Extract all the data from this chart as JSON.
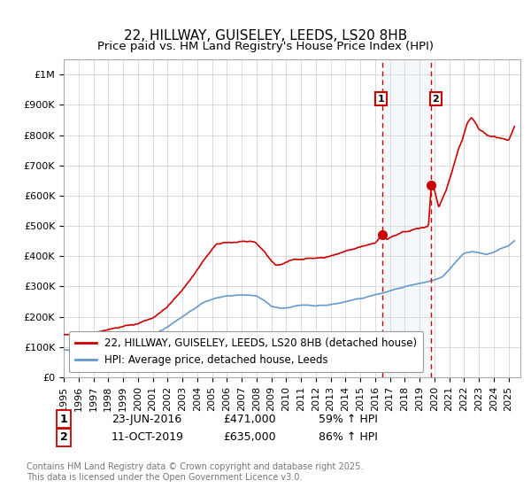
{
  "title_line1": "22, HILLWAY, GUISELEY, LEEDS, LS20 8HB",
  "title_line2": "Price paid vs. HM Land Registry's House Price Index (HPI)",
  "ylabel_ticks": [
    "£0",
    "£100K",
    "£200K",
    "£300K",
    "£400K",
    "£500K",
    "£600K",
    "£700K",
    "£800K",
    "£900K",
    "£1M"
  ],
  "ytick_values": [
    0,
    100000,
    200000,
    300000,
    400000,
    500000,
    600000,
    700000,
    800000,
    900000,
    1000000
  ],
  "ylim": [
    0,
    1050000
  ],
  "xlim_start": 1995.0,
  "xlim_end": 2025.8,
  "x_tick_years": [
    1995,
    1996,
    1997,
    1998,
    1999,
    2000,
    2001,
    2002,
    2003,
    2004,
    2005,
    2006,
    2007,
    2008,
    2009,
    2010,
    2011,
    2012,
    2013,
    2014,
    2015,
    2016,
    2017,
    2018,
    2019,
    2020,
    2021,
    2022,
    2023,
    2024,
    2025
  ],
  "red_line_color": "#cc0000",
  "blue_line_color": "#6699cc",
  "background_color": "#ffffff",
  "grid_color": "#cccccc",
  "marker1_date": 2016.48,
  "marker1_value": 471000,
  "marker1_label": "1",
  "marker2_date": 2019.79,
  "marker2_value": 635000,
  "marker2_label": "2",
  "vline1_x": 2016.48,
  "vline2_x": 2019.79,
  "shade_color": "#ccd9ee",
  "legend_label_red": "22, HILLWAY, GUISELEY, LEEDS, LS20 8HB (detached house)",
  "legend_label_blue": "HPI: Average price, detached house, Leeds",
  "footer": "Contains HM Land Registry data © Crown copyright and database right 2025.\nThis data is licensed under the Open Government Licence v3.0.",
  "title_fontsize": 11,
  "tick_fontsize": 8,
  "legend_fontsize": 8.5,
  "footer_fontsize": 7,
  "ann_fontsize": 9
}
